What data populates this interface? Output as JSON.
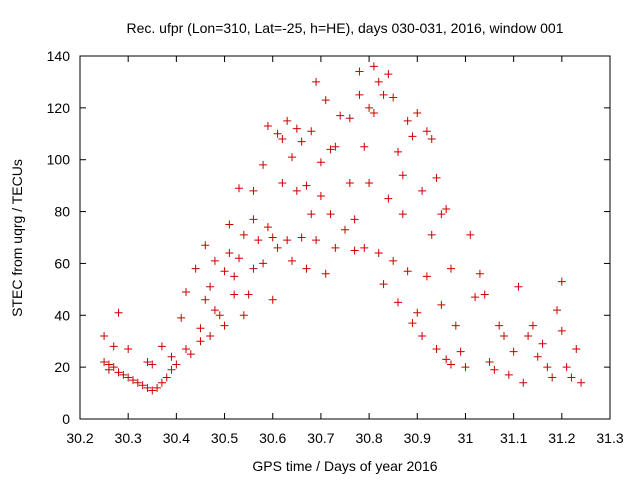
{
  "chart_data": {
    "type": "scatter",
    "title": "Rec. ufpr (Lon=310, Lat=-25, h=HE), days 030-031, 2016, window 001",
    "xlabel": "GPS time / Days of year 2016",
    "ylabel": "STEC from uqrg / TECUs",
    "xlim": [
      30.2,
      31.3
    ],
    "ylim": [
      0,
      140
    ],
    "xticks": [
      30.2,
      30.3,
      30.4,
      30.5,
      30.6,
      30.7,
      30.8,
      30.9,
      31,
      31.1,
      31.2,
      31.3
    ],
    "xtick_labels": [
      "30.2",
      "30.3",
      "30.4",
      "30.5",
      "30.6",
      "30.7",
      "30.8",
      "30.9",
      "31",
      "31.1",
      "31.2",
      "31.3"
    ],
    "yticks": [
      0,
      20,
      40,
      60,
      80,
      100,
      120,
      140
    ],
    "ytick_labels": [
      "0",
      "20",
      "40",
      "60",
      "80",
      "100",
      "120",
      "140"
    ],
    "grid": false,
    "marker": "+",
    "color": "#cc0000",
    "series": [
      {
        "name": "STEC",
        "points": [
          [
            30.25,
            32
          ],
          [
            30.25,
            22
          ],
          [
            30.26,
            21
          ],
          [
            30.26,
            19
          ],
          [
            30.27,
            28
          ],
          [
            30.27,
            20
          ],
          [
            30.28,
            41
          ],
          [
            30.28,
            18
          ],
          [
            30.29,
            17
          ],
          [
            30.3,
            27
          ],
          [
            30.3,
            16
          ],
          [
            30.31,
            15
          ],
          [
            30.32,
            14
          ],
          [
            30.33,
            13
          ],
          [
            30.34,
            22
          ],
          [
            30.34,
            12
          ],
          [
            30.35,
            11
          ],
          [
            30.35,
            21
          ],
          [
            30.36,
            12
          ],
          [
            30.37,
            28
          ],
          [
            30.37,
            14
          ],
          [
            30.38,
            16
          ],
          [
            30.39,
            19
          ],
          [
            30.39,
            24
          ],
          [
            30.4,
            21
          ],
          [
            30.41,
            39
          ],
          [
            30.42,
            49
          ],
          [
            30.42,
            27
          ],
          [
            30.43,
            25
          ],
          [
            30.44,
            58
          ],
          [
            30.45,
            30
          ],
          [
            30.45,
            35
          ],
          [
            30.46,
            67
          ],
          [
            30.46,
            46
          ],
          [
            30.47,
            51
          ],
          [
            30.47,
            32
          ],
          [
            30.48,
            61
          ],
          [
            30.48,
            42
          ],
          [
            30.49,
            40
          ],
          [
            30.5,
            57
          ],
          [
            30.5,
            36
          ],
          [
            30.51,
            75
          ],
          [
            30.51,
            64
          ],
          [
            30.52,
            55
          ],
          [
            30.52,
            48
          ],
          [
            30.53,
            89
          ],
          [
            30.53,
            62
          ],
          [
            30.54,
            71
          ],
          [
            30.54,
            40
          ],
          [
            30.55,
            48
          ],
          [
            30.56,
            77
          ],
          [
            30.56,
            88
          ],
          [
            30.56,
            58
          ],
          [
            30.57,
            69
          ],
          [
            30.58,
            98
          ],
          [
            30.58,
            60
          ],
          [
            30.59,
            113
          ],
          [
            30.59,
            74
          ],
          [
            30.6,
            70
          ],
          [
            30.6,
            46
          ],
          [
            30.61,
            110
          ],
          [
            30.61,
            66
          ],
          [
            30.62,
            108
          ],
          [
            30.62,
            91
          ],
          [
            30.63,
            115
          ],
          [
            30.63,
            69
          ],
          [
            30.64,
            101
          ],
          [
            30.64,
            61
          ],
          [
            30.65,
            112
          ],
          [
            30.65,
            88
          ],
          [
            30.66,
            107
          ],
          [
            30.66,
            70
          ],
          [
            30.67,
            90
          ],
          [
            30.67,
            58
          ],
          [
            30.68,
            111
          ],
          [
            30.68,
            79
          ],
          [
            30.69,
            130
          ],
          [
            30.69,
            69
          ],
          [
            30.7,
            99
          ],
          [
            30.7,
            86
          ],
          [
            30.71,
            123
          ],
          [
            30.71,
            56
          ],
          [
            30.72,
            104
          ],
          [
            30.72,
            79
          ],
          [
            30.73,
            105
          ],
          [
            30.73,
            66
          ],
          [
            30.74,
            117
          ],
          [
            30.75,
            73
          ],
          [
            30.76,
            116
          ],
          [
            30.76,
            91
          ],
          [
            30.77,
            65
          ],
          [
            30.77,
            77
          ],
          [
            30.78,
            134
          ],
          [
            30.78,
            125
          ],
          [
            30.79,
            105
          ],
          [
            30.79,
            66
          ],
          [
            30.8,
            120
          ],
          [
            30.8,
            91
          ],
          [
            30.81,
            136
          ],
          [
            30.81,
            118
          ],
          [
            30.82,
            130
          ],
          [
            30.82,
            64
          ],
          [
            30.83,
            125
          ],
          [
            30.83,
            52
          ],
          [
            30.84,
            133
          ],
          [
            30.84,
            85
          ],
          [
            30.85,
            124
          ],
          [
            30.85,
            61
          ],
          [
            30.86,
            103
          ],
          [
            30.86,
            45
          ],
          [
            30.87,
            94
          ],
          [
            30.87,
            79
          ],
          [
            30.88,
            115
          ],
          [
            30.88,
            57
          ],
          [
            30.89,
            109
          ],
          [
            30.89,
            37
          ],
          [
            30.9,
            118
          ],
          [
            30.9,
            41
          ],
          [
            30.91,
            88
          ],
          [
            30.91,
            32
          ],
          [
            30.92,
            111
          ],
          [
            30.92,
            55
          ],
          [
            30.93,
            108
          ],
          [
            30.93,
            71
          ],
          [
            30.94,
            93
          ],
          [
            30.94,
            27
          ],
          [
            30.95,
            79
          ],
          [
            30.95,
            44
          ],
          [
            30.96,
            81
          ],
          [
            30.96,
            23
          ],
          [
            30.97,
            58
          ],
          [
            30.97,
            21
          ],
          [
            30.98,
            36
          ],
          [
            30.99,
            26
          ],
          [
            31,
            20
          ],
          [
            31.01,
            71
          ],
          [
            31.02,
            47
          ],
          [
            31.03,
            56
          ],
          [
            31.04,
            48
          ],
          [
            31.05,
            22
          ],
          [
            31.06,
            19
          ],
          [
            31.07,
            36
          ],
          [
            31.08,
            32
          ],
          [
            31.09,
            17
          ],
          [
            31.1,
            26
          ],
          [
            31.11,
            51
          ],
          [
            31.12,
            14
          ],
          [
            31.13,
            32
          ],
          [
            31.14,
            36
          ],
          [
            31.15,
            24
          ],
          [
            31.16,
            29
          ],
          [
            31.17,
            20
          ],
          [
            31.18,
            16
          ],
          [
            31.19,
            42
          ],
          [
            31.2,
            53
          ],
          [
            31.2,
            34
          ],
          [
            31.21,
            20
          ],
          [
            31.22,
            16
          ],
          [
            31.23,
            27
          ],
          [
            31.24,
            14
          ]
        ]
      }
    ]
  }
}
